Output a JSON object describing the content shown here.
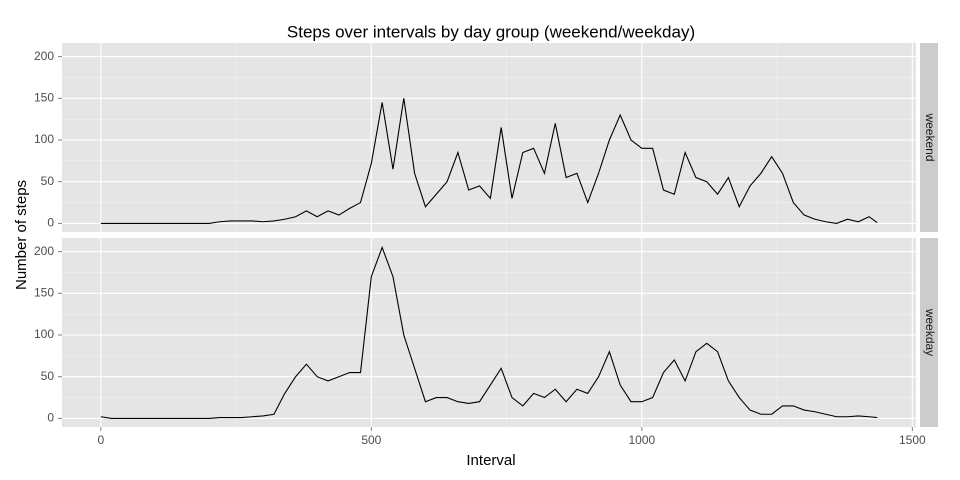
{
  "chart_data": {
    "type": "line",
    "title": "Steps over intervals by day group (weekend/weekday)",
    "x_label": "Interval",
    "y_label": "Number of steps",
    "x": [
      0,
      20,
      40,
      60,
      80,
      100,
      120,
      140,
      160,
      180,
      200,
      220,
      240,
      260,
      280,
      300,
      320,
      340,
      360,
      380,
      400,
      420,
      440,
      460,
      480,
      500,
      520,
      540,
      560,
      580,
      600,
      620,
      640,
      660,
      680,
      700,
      720,
      740,
      760,
      780,
      800,
      820,
      840,
      860,
      880,
      900,
      920,
      940,
      960,
      980,
      1000,
      1020,
      1040,
      1060,
      1080,
      1100,
      1120,
      1140,
      1160,
      1180,
      1200,
      1220,
      1240,
      1260,
      1280,
      1300,
      1320,
      1340,
      1360,
      1380,
      1400,
      1420,
      1435
    ],
    "series": [
      {
        "name": "weekend",
        "color": "#000000",
        "values": [
          0,
          0,
          0,
          0,
          0,
          0,
          0,
          0,
          0,
          0,
          0,
          2,
          3,
          3,
          3,
          2,
          3,
          5,
          8,
          15,
          8,
          15,
          10,
          18,
          25,
          72,
          145,
          65,
          150,
          60,
          20,
          35,
          50,
          85,
          40,
          45,
          30,
          115,
          30,
          85,
          90,
          60,
          120,
          55,
          60,
          25,
          60,
          100,
          130,
          100,
          90,
          90,
          40,
          35,
          85,
          55,
          50,
          35,
          55,
          20,
          45,
          60,
          80,
          60,
          25,
          10,
          5,
          2,
          0,
          5,
          2,
          8,
          1
        ]
      },
      {
        "name": "weekday",
        "color": "#000000",
        "values": [
          2,
          0,
          0,
          0,
          0,
          0,
          0,
          0,
          0,
          0,
          0,
          1,
          1,
          1,
          2,
          3,
          5,
          30,
          50,
          65,
          50,
          45,
          50,
          55,
          55,
          170,
          205,
          170,
          100,
          60,
          20,
          25,
          25,
          20,
          18,
          20,
          40,
          60,
          25,
          15,
          30,
          25,
          35,
          20,
          35,
          30,
          50,
          80,
          40,
          20,
          20,
          25,
          55,
          70,
          45,
          80,
          90,
          80,
          45,
          25,
          10,
          5,
          5,
          15,
          15,
          10,
          8,
          5,
          2,
          2,
          3,
          2,
          1
        ]
      }
    ],
    "facet": true,
    "xlim": [
      -71.75,
      1506.75
    ],
    "ylim": [
      -10.3,
      216.3
    ],
    "xticks": [
      0,
      500,
      1000,
      1500
    ],
    "yticks": [
      0,
      50,
      100,
      150,
      200
    ],
    "grid": true
  }
}
